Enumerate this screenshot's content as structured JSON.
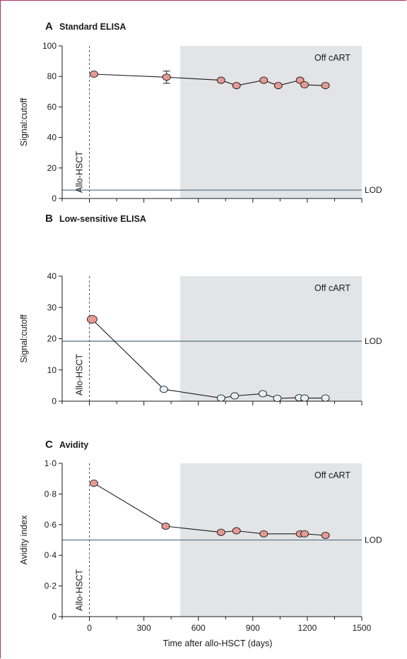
{
  "chart_data": [
    {
      "type": "scatter",
      "panel_letter": "A",
      "title": "Standard ELISA",
      "ylabel": "Signal:cutoff",
      "xlim": [
        -150,
        1500
      ],
      "ylim": [
        0,
        100
      ],
      "yticks": [
        0,
        20,
        40,
        60,
        80,
        100
      ],
      "ytick_labels": [
        "0",
        "20",
        "40",
        "60",
        "80",
        "100"
      ],
      "lod": 5.5,
      "lod_label": "LOD",
      "shaded_region": {
        "from": 500,
        "to": 1500,
        "label": "Off cART",
        "color": "#e3e4e6"
      },
      "vline": {
        "x": 0,
        "label": "Allo-HSCT"
      },
      "series": [
        {
          "points": [
            {
              "x": 25,
              "y": 81.5,
              "fill": "#e59a93"
            },
            {
              "x": 425,
              "y": 79.5,
              "fill": "#e59a93",
              "err": 4
            },
            {
              "x": 725,
              "y": 77.5,
              "fill": "#e59a93"
            },
            {
              "x": 810,
              "y": 74,
              "fill": "#e59a93"
            },
            {
              "x": 960,
              "y": 77.5,
              "fill": "#e59a93"
            },
            {
              "x": 1040,
              "y": 74,
              "fill": "#e59a93"
            },
            {
              "x": 1160,
              "y": 77.5,
              "fill": "#e59a93"
            },
            {
              "x": 1185,
              "y": 74.5,
              "fill": "#e59a93"
            },
            {
              "x": 1300,
              "y": 74,
              "fill": "#e59a93"
            }
          ]
        }
      ]
    },
    {
      "type": "scatter",
      "panel_letter": "B",
      "title": "Low-sensitive ELISA",
      "ylabel": "Signal:cutoff",
      "xlim": [
        -150,
        1500
      ],
      "ylim": [
        0,
        40
      ],
      "yticks": [
        0,
        10,
        20,
        30,
        40
      ],
      "ytick_labels": [
        "0",
        "10",
        "20",
        "30",
        "40"
      ],
      "lod": 19.2,
      "lod_label": "LOD",
      "shaded_region": {
        "from": 500,
        "to": 1500,
        "label": "Off cART",
        "color": "#e3e4e6"
      },
      "vline": {
        "x": 0,
        "label": "Allo-HSCT"
      },
      "series": [
        {
          "points": [
            {
              "x": 15,
              "y": 26.2,
              "fill": "#e59a93"
            },
            {
              "x": 410,
              "y": 3.8,
              "fill": "#e5f1f8"
            },
            {
              "x": 725,
              "y": 1.0,
              "fill": "#e5f1f8"
            },
            {
              "x": 800,
              "y": 1.7,
              "fill": "#e5f1f8"
            },
            {
              "x": 955,
              "y": 2.4,
              "fill": "#e5f1f8"
            },
            {
              "x": 1035,
              "y": 0.9,
              "fill": "#e5f1f8"
            },
            {
              "x": 1155,
              "y": 1.1,
              "fill": "#e5f1f8"
            },
            {
              "x": 1185,
              "y": 1.0,
              "fill": "#e5f1f8"
            },
            {
              "x": 1300,
              "y": 1.0,
              "fill": "#e5f1f8"
            }
          ]
        }
      ]
    },
    {
      "type": "scatter",
      "panel_letter": "C",
      "title": "Avidity",
      "ylabel": "Avidity index",
      "xlabel": "Time after allo-HSCT (days)",
      "xlim": [
        -150,
        1500
      ],
      "ylim": [
        0,
        1.0
      ],
      "xticks": [
        0,
        300,
        600,
        900,
        1200,
        1500
      ],
      "xtick_labels": [
        "0",
        "300",
        "600",
        "900",
        "1200",
        "1500"
      ],
      "yticks": [
        0,
        0.2,
        0.4,
        0.6,
        0.8,
        1.0
      ],
      "ytick_labels": [
        "0",
        "0·2",
        "0·4",
        "0·6",
        "0·8",
        "1·0"
      ],
      "lod": 0.5,
      "lod_label": "LOD",
      "shaded_region": {
        "from": 500,
        "to": 1500,
        "label": "Off cART",
        "color": "#e3e4e6"
      },
      "vline": {
        "x": 0,
        "label": "Allo-HSCT"
      },
      "series": [
        {
          "points": [
            {
              "x": 25,
              "y": 0.87,
              "fill": "#e59a93"
            },
            {
              "x": 420,
              "y": 0.59,
              "fill": "#e59a93"
            },
            {
              "x": 725,
              "y": 0.55,
              "fill": "#e59a93"
            },
            {
              "x": 810,
              "y": 0.56,
              "fill": "#e59a93"
            },
            {
              "x": 960,
              "y": 0.54,
              "fill": "#e59a93"
            },
            {
              "x": 1160,
              "y": 0.54,
              "fill": "#e59a93"
            },
            {
              "x": 1185,
              "y": 0.54,
              "fill": "#e59a93"
            },
            {
              "x": 1300,
              "y": 0.53,
              "fill": "#e59a93"
            }
          ]
        }
      ]
    }
  ],
  "colors": {
    "frame": "#b2316a",
    "lod_line": "#5c7a8c",
    "marker_stroke": "#1a1a1a",
    "axis": "#1a1a1a"
  }
}
